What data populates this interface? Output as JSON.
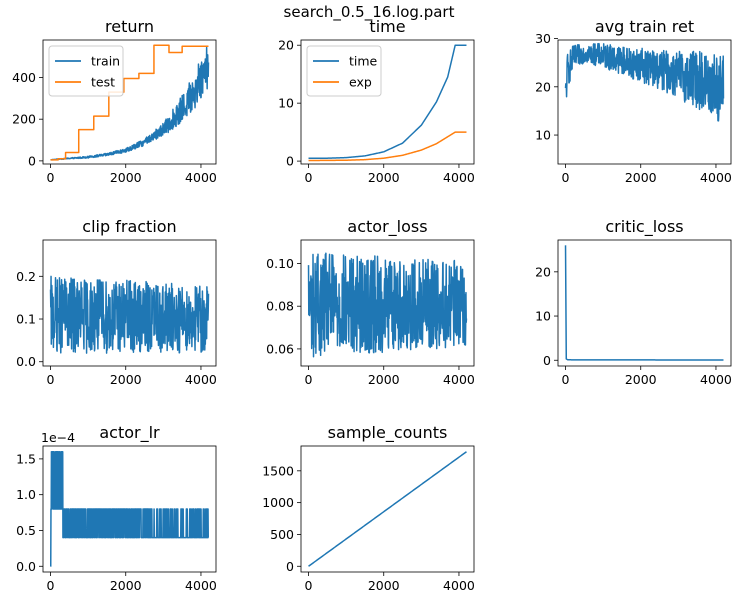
{
  "figure": {
    "suptitle": "search_0.5_16.log.part"
  },
  "colors": {
    "blue": "#1f77b4",
    "orange": "#ff7f0e"
  },
  "chart_data": [
    {
      "id": "return",
      "type": "line",
      "title": "return",
      "xlim": [
        -200,
        4400
      ],
      "ylim": [
        -15,
        580
      ],
      "xticks": [
        0,
        2000,
        4000
      ],
      "yticks": [
        0,
        200,
        400
      ],
      "legend": "top-left",
      "series": [
        {
          "name": "train",
          "color": "#1f77b4",
          "style": "noisy-growth",
          "x": [
            0,
            500,
            1000,
            1500,
            2000,
            2500,
            3000,
            3500,
            3800,
            4000,
            4200
          ],
          "values": [
            5,
            12,
            18,
            30,
            50,
            90,
            150,
            250,
            330,
            400,
            470
          ],
          "noise_amp": [
            1,
            3,
            5,
            8,
            12,
            20,
            40,
            80,
            110,
            130,
            150
          ]
        },
        {
          "name": "test",
          "color": "#ff7f0e",
          "style": "step",
          "x": [
            0,
            200,
            400,
            750,
            1150,
            1550,
            1950,
            2350,
            2750,
            3150,
            3500,
            4200
          ],
          "values": [
            5,
            10,
            40,
            150,
            215,
            330,
            395,
            420,
            555,
            520,
            550,
            550
          ]
        }
      ]
    },
    {
      "id": "time",
      "type": "line",
      "title": "time",
      "xlim": [
        -200,
        4400
      ],
      "ylim": [
        -0.5,
        20.9
      ],
      "xticks": [
        0,
        2000,
        4000
      ],
      "yticks": [
        0,
        10,
        20
      ],
      "legend": "top-left",
      "series": [
        {
          "name": "time",
          "color": "#1f77b4",
          "style": "curve",
          "x": [
            0,
            500,
            1000,
            1500,
            2000,
            2500,
            3000,
            3400,
            3700,
            3900,
            4200
          ],
          "values": [
            0.5,
            0.5,
            0.6,
            0.9,
            1.6,
            3.1,
            6.2,
            10.2,
            14.5,
            20,
            20
          ]
        },
        {
          "name": "exp",
          "color": "#ff7f0e",
          "style": "curve",
          "x": [
            0,
            1000,
            1500,
            2000,
            2500,
            3000,
            3400,
            3700,
            3900,
            4200
          ],
          "values": [
            0.1,
            0.15,
            0.25,
            0.5,
            1.0,
            1.9,
            3.0,
            4.2,
            5.0,
            5.0
          ]
        }
      ]
    },
    {
      "id": "avg_train_ret",
      "type": "line",
      "title": "avg train ret",
      "xlim": [
        -200,
        4400
      ],
      "ylim": [
        4,
        29.7
      ],
      "xticks": [
        0,
        2000,
        4000
      ],
      "yticks": [
        10,
        20,
        30
      ],
      "series": [
        {
          "name": "",
          "color": "#1f77b4",
          "style": "noise",
          "x": [
            0,
            50,
            200,
            500,
            1000,
            1500,
            2000,
            2500,
            3000,
            3500,
            4000,
            4200
          ],
          "values": [
            18,
            23,
            26,
            27,
            26.5,
            25.5,
            24.5,
            23.5,
            22.5,
            21.5,
            20,
            19
          ],
          "noise_amp": [
            3,
            4,
            2.5,
            2,
            2.5,
            3,
            3.5,
            4,
            5,
            6,
            7,
            8
          ]
        }
      ]
    },
    {
      "id": "clip_fraction",
      "type": "line",
      "title": "clip fraction",
      "xlim": [
        -200,
        4400
      ],
      "ylim": [
        -0.01,
        0.285
      ],
      "xticks": [
        0,
        2000,
        4000
      ],
      "yticks": [
        0.0,
        0.1,
        0.2
      ],
      "series": [
        {
          "name": "",
          "color": "#1f77b4",
          "style": "noise",
          "x": [
            0,
            4200
          ],
          "values": [
            0.11,
            0.1
          ],
          "noise_amp": [
            0.09,
            0.08
          ]
        }
      ]
    },
    {
      "id": "actor_loss",
      "type": "line",
      "title": "actor_loss",
      "xlim": [
        -200,
        4400
      ],
      "ylim": [
        0.052,
        0.111
      ],
      "xticks": [
        0,
        2000,
        4000
      ],
      "yticks": [
        0.06,
        0.08,
        0.1
      ],
      "series": [
        {
          "name": "",
          "color": "#1f77b4",
          "style": "noise",
          "x": [
            0,
            4200
          ],
          "values": [
            0.081,
            0.081
          ],
          "noise_amp": [
            0.025,
            0.02
          ]
        }
      ]
    },
    {
      "id": "critic_loss",
      "type": "line",
      "title": "critic_loss",
      "xlim": [
        -200,
        4400
      ],
      "ylim": [
        -1.3,
        27.2
      ],
      "xticks": [
        0,
        2000,
        4000
      ],
      "yticks": [
        0,
        10,
        20
      ],
      "series": [
        {
          "name": "",
          "color": "#1f77b4",
          "style": "curve",
          "x": [
            0,
            20,
            60,
            4200
          ],
          "values": [
            26,
            0.3,
            0.1,
            0.05
          ]
        }
      ]
    },
    {
      "id": "actor_lr",
      "type": "line",
      "title": "actor_lr",
      "scale_label": "1e−4",
      "xlim": [
        -200,
        4400
      ],
      "ylim": [
        -0.08,
        1.68
      ],
      "xticks": [
        0,
        2000,
        4000
      ],
      "yticks": [
        0.0,
        0.5,
        1.0,
        1.5
      ],
      "series": [
        {
          "name": "",
          "color": "#1f77b4",
          "style": "lr-switch",
          "x": [
            0,
            4200
          ],
          "values": [
            0.8,
            0.4
          ],
          "levels": [
            0.0,
            0.4,
            0.8,
            1.6
          ]
        }
      ]
    },
    {
      "id": "sample_counts",
      "type": "line",
      "title": "sample_counts",
      "xlim": [
        -200,
        4400
      ],
      "ylim": [
        -90,
        1890
      ],
      "xticks": [
        0,
        2000,
        4000
      ],
      "yticks": [
        0,
        500,
        1000,
        1500
      ],
      "series": [
        {
          "name": "",
          "color": "#1f77b4",
          "style": "curve",
          "x": [
            0,
            4200
          ],
          "values": [
            0,
            1800
          ]
        }
      ]
    }
  ]
}
